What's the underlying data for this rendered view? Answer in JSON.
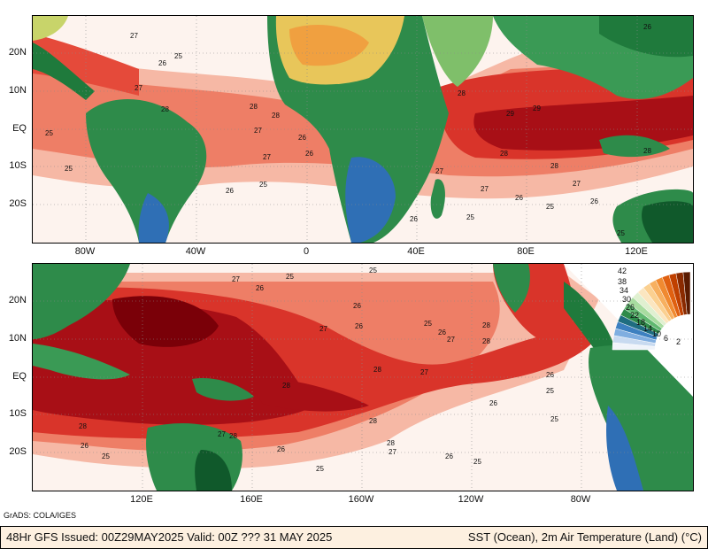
{
  "credit": "GrADS: COLA/IGES",
  "footer": {
    "left": "48Hr GFS Issued: 00Z29MAY2025 Valid: 00Z ??? 31 MAY 2025",
    "right": "SST (Ocean), 2m Air Temperature (Land) (°C)"
  },
  "top_panel": {
    "lat_labels": [
      "20N",
      "10N",
      "EQ",
      "10S",
      "20S"
    ],
    "lon_labels": [
      "80W",
      "40W",
      "0",
      "40E",
      "80E",
      "120E"
    ]
  },
  "bottom_panel": {
    "lat_labels": [
      "20N",
      "10N",
      "EQ",
      "10S",
      "20S"
    ],
    "lon_labels": [
      "120E",
      "160E",
      "160W",
      "120W",
      "80W"
    ]
  },
  "contour_labels": [
    "25",
    "26",
    "27",
    "28",
    "29"
  ],
  "colorbar": {
    "labels": [
      "42",
      "38",
      "34",
      "30",
      "26",
      "22",
      "18",
      "14",
      "10",
      "6",
      "2"
    ]
  },
  "colors": {
    "ocean_warm": "#e8463a",
    "ocean_hot": "#b3121a",
    "ocean_hottest": "#7a0008",
    "ocean_cool": "#fbe3d8",
    "land_green": "#2e8b4a",
    "land_dark_green": "#10592b",
    "land_yellow": "#e8d65a",
    "land_blue": "#2f6fb5"
  }
}
